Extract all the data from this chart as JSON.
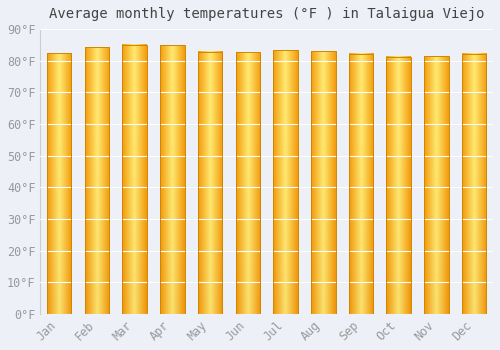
{
  "title": "Average monthly temperatures (°F ) in Talaigua Viejo",
  "months": [
    "Jan",
    "Feb",
    "Mar",
    "Apr",
    "May",
    "Jun",
    "Jul",
    "Aug",
    "Sep",
    "Oct",
    "Nov",
    "Dec"
  ],
  "values": [
    82.4,
    84.2,
    85.1,
    84.9,
    82.9,
    82.6,
    83.3,
    83.1,
    82.2,
    81.3,
    81.5,
    82.2
  ],
  "ylim": [
    0,
    90
  ],
  "yticks": [
    0,
    10,
    20,
    30,
    40,
    50,
    60,
    70,
    80,
    90
  ],
  "bar_color_center": "#FFE680",
  "bar_color_edge": "#F5A000",
  "bar_color_bottom": "#F09000",
  "bar_edge_color": "#CC8800",
  "background_color": "#EEF0F8",
  "plot_bg_color": "#EEF0F8",
  "grid_color": "#FFFFFF",
  "title_fontsize": 10,
  "tick_fontsize": 8.5,
  "bar_width": 0.65
}
